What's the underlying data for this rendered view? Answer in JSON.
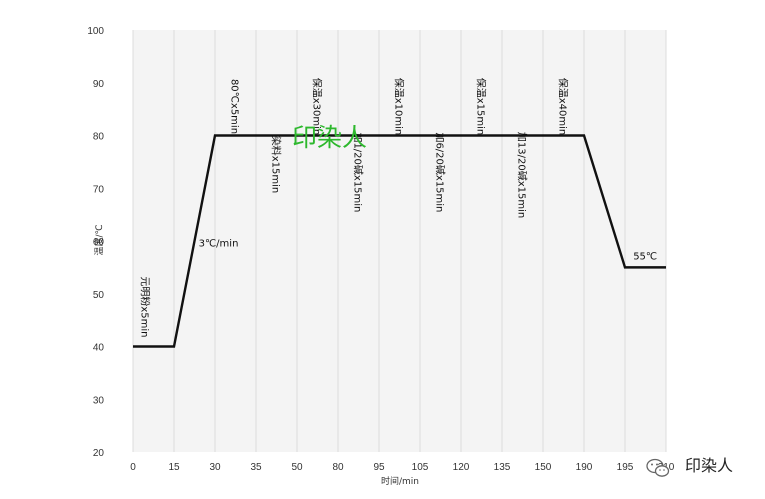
{
  "chart_data": {
    "type": "line",
    "title": "",
    "xlabel": "时间/min",
    "ylabel": "温度/℃",
    "ylim": [
      20,
      100
    ],
    "yticks": [
      "20",
      "30",
      "40",
      "50",
      "60",
      "70",
      "80",
      "90",
      "100"
    ],
    "categories": [
      "0",
      "15",
      "30",
      "35",
      "50",
      "80",
      "95",
      "105",
      "120",
      "135",
      "150",
      "190",
      "195",
      "210"
    ],
    "series": [
      {
        "color": "#111111",
        "points": [
          {
            "x_index": 0,
            "y": 40
          },
          {
            "x_index": 1,
            "y": 40
          },
          {
            "x_index": 2,
            "y": 80
          },
          {
            "x_index": 11,
            "y": 80
          },
          {
            "x_index": 12,
            "y": 55
          },
          {
            "x_index": 13,
            "y": 55
          }
        ]
      }
    ],
    "grid": "vertical",
    "background": "#f4f4f4",
    "annotations": [
      {
        "text": "元明粉x5min",
        "x_index": 0.3,
        "y": 47.5,
        "anchor": "middle",
        "orientation": "vertical"
      },
      {
        "text": "3℃/min",
        "x_index": 1.6,
        "y": 59,
        "anchor": "start",
        "orientation": "horizontal"
      },
      {
        "text": "80℃x5min",
        "x_index": 2.5,
        "y": 85.5,
        "anchor": "middle",
        "orientation": "vertical"
      },
      {
        "text": "染料x15min",
        "x_index": 3.5,
        "y": 74.5,
        "anchor": "middle",
        "orientation": "vertical"
      },
      {
        "text": "保温x30min",
        "x_index": 4.5,
        "y": 85.5,
        "anchor": "middle",
        "orientation": "vertical"
      },
      {
        "text": "加1/20碱x15min",
        "x_index": 5.5,
        "y": 73,
        "anchor": "middle",
        "orientation": "vertical"
      },
      {
        "text": "保温x10min",
        "x_index": 6.5,
        "y": 85.5,
        "anchor": "middle",
        "orientation": "vertical"
      },
      {
        "text": "加6/20碱x15min",
        "x_index": 7.5,
        "y": 73,
        "anchor": "middle",
        "orientation": "vertical"
      },
      {
        "text": "保温x15min",
        "x_index": 8.5,
        "y": 85.5,
        "anchor": "middle",
        "orientation": "vertical"
      },
      {
        "text": "加13/20碱x15min",
        "x_index": 9.5,
        "y": 72.5,
        "anchor": "middle",
        "orientation": "vertical"
      },
      {
        "text": "保温x40min",
        "x_index": 10.5,
        "y": 85.5,
        "anchor": "middle",
        "orientation": "vertical"
      },
      {
        "text": "55℃",
        "x_index": 12.2,
        "y": 56.5,
        "anchor": "start",
        "orientation": "horizontal"
      }
    ]
  },
  "watermark": {
    "text": "印染人",
    "color": "#2db82d"
  },
  "logo": {
    "text": "印染人",
    "icon": "wechat-icon"
  }
}
